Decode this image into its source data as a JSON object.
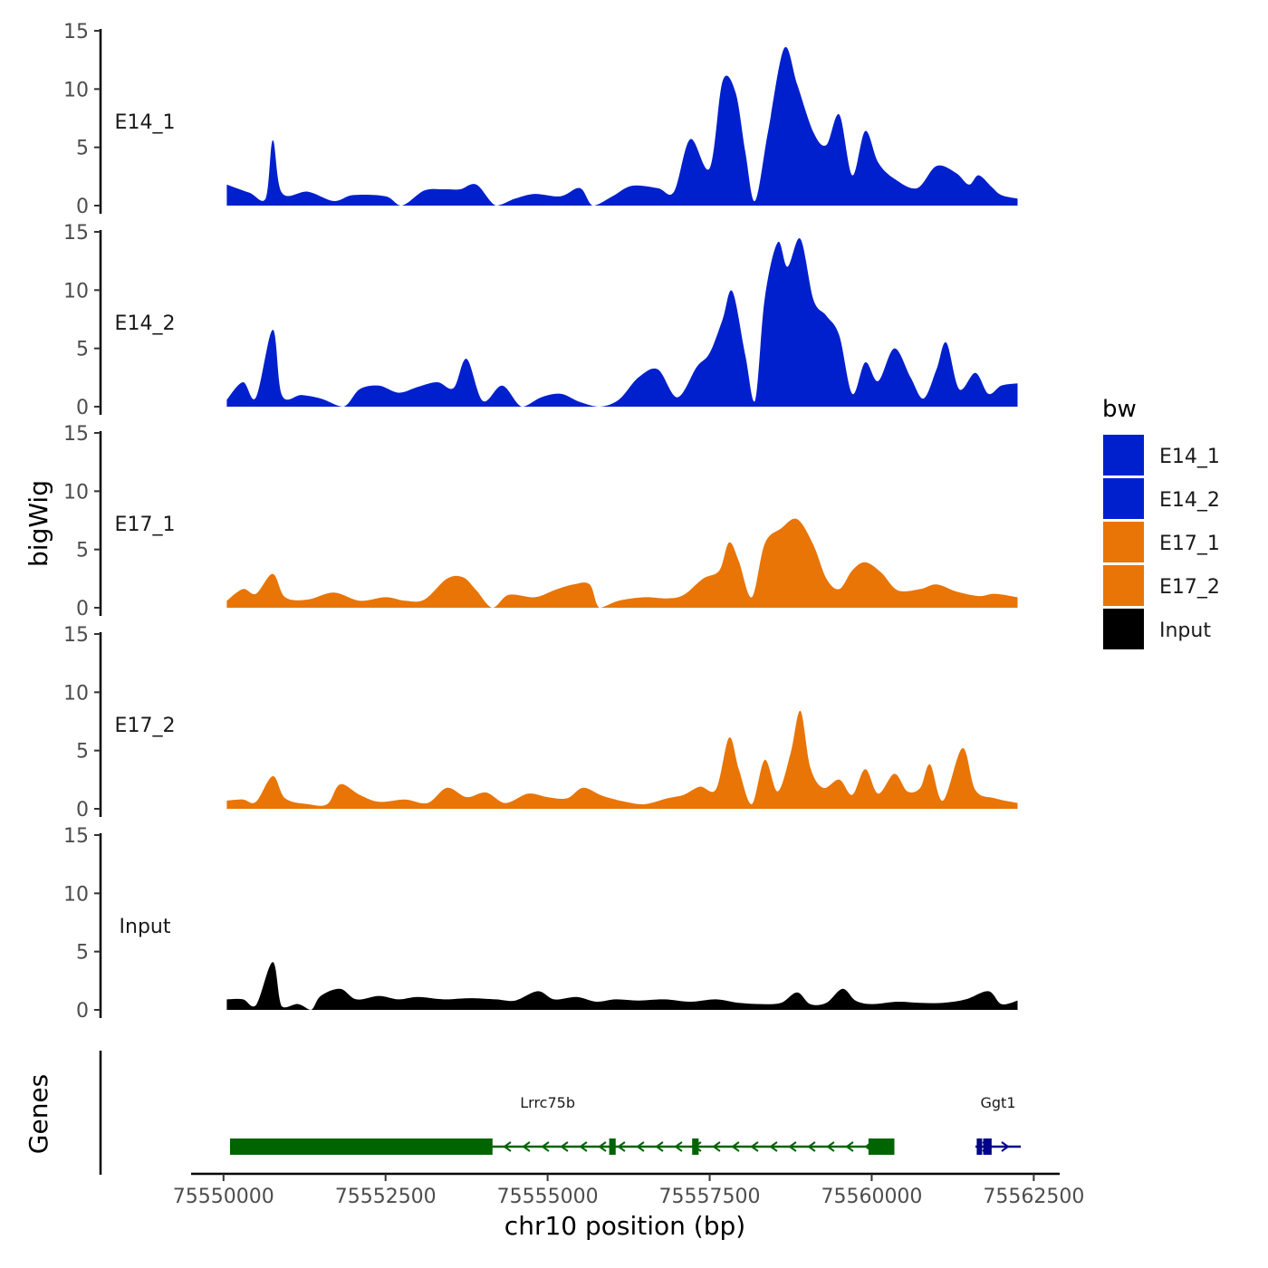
{
  "chart_data": {
    "type": "area",
    "ylabel": "bigWig",
    "genes_panel_label": "Genes",
    "xlabel": "chr10 position (bp)",
    "xlim": [
      75549500,
      75562900
    ],
    "ylim": [
      0,
      15
    ],
    "y_ticks": [
      0,
      5,
      10,
      15
    ],
    "x_ticks": [
      75550000,
      75552500,
      75555000,
      75557500,
      75560000,
      75562500
    ],
    "legend": {
      "title": "bw",
      "position": "right",
      "entries": [
        {
          "label": "E14_1",
          "color": "#0120CD"
        },
        {
          "label": "E14_2",
          "color": "#0120CD"
        },
        {
          "label": "E17_1",
          "color": "#E87506"
        },
        {
          "label": "E17_2",
          "color": "#E87506"
        },
        {
          "label": "Input",
          "color": "#000000"
        }
      ]
    },
    "series": [
      {
        "name": "E14_1",
        "color": "#0120CD",
        "points": [
          [
            75550050,
            1.8
          ],
          [
            75550400,
            1.1
          ],
          [
            75550650,
            0.6
          ],
          [
            75550760,
            5.6
          ],
          [
            75550900,
            1.1
          ],
          [
            75551300,
            1.2
          ],
          [
            75551700,
            0.4
          ],
          [
            75552000,
            0.9
          ],
          [
            75552500,
            0.8
          ],
          [
            75552750,
            0
          ],
          [
            75553100,
            1.3
          ],
          [
            75553400,
            1.4
          ],
          [
            75553650,
            1.4
          ],
          [
            75553900,
            1.8
          ],
          [
            75554200,
            0
          ],
          [
            75554500,
            0.6
          ],
          [
            75554800,
            1.0
          ],
          [
            75555200,
            0.8
          ],
          [
            75555500,
            1.5
          ],
          [
            75555700,
            0
          ],
          [
            75556000,
            0.8
          ],
          [
            75556300,
            1.7
          ],
          [
            75556700,
            1.5
          ],
          [
            75556950,
            1.2
          ],
          [
            75557200,
            5.7
          ],
          [
            75557500,
            3.2
          ],
          [
            75557700,
            10.7
          ],
          [
            75557900,
            9.7
          ],
          [
            75558050,
            4.6
          ],
          [
            75558200,
            0.4
          ],
          [
            75558400,
            6.3
          ],
          [
            75558650,
            13.5
          ],
          [
            75558850,
            10.4
          ],
          [
            75559100,
            6.3
          ],
          [
            75559300,
            5.2
          ],
          [
            75559500,
            7.8
          ],
          [
            75559700,
            2.6
          ],
          [
            75559900,
            6.4
          ],
          [
            75560100,
            3.7
          ],
          [
            75560350,
            2.3
          ],
          [
            75560700,
            1.5
          ],
          [
            75561000,
            3.4
          ],
          [
            75561300,
            2.8
          ],
          [
            75561500,
            1.8
          ],
          [
            75561650,
            2.6
          ],
          [
            75561850,
            1.6
          ],
          [
            75562000,
            0.9
          ],
          [
            75562250,
            0.6
          ]
        ]
      },
      {
        "name": "E14_2",
        "color": "#0120CD",
        "points": [
          [
            75550050,
            0.6
          ],
          [
            75550300,
            2.1
          ],
          [
            75550500,
            0.8
          ],
          [
            75550760,
            6.6
          ],
          [
            75550900,
            1.0
          ],
          [
            75551200,
            1.0
          ],
          [
            75551500,
            0.7
          ],
          [
            75551850,
            0
          ],
          [
            75552100,
            1.5
          ],
          [
            75552400,
            1.8
          ],
          [
            75552700,
            1.2
          ],
          [
            75553000,
            1.7
          ],
          [
            75553300,
            2.1
          ],
          [
            75553550,
            1.6
          ],
          [
            75553750,
            4.1
          ],
          [
            75554000,
            0.5
          ],
          [
            75554300,
            1.8
          ],
          [
            75554600,
            0
          ],
          [
            75554900,
            0.8
          ],
          [
            75555200,
            1.1
          ],
          [
            75555500,
            0.4
          ],
          [
            75555800,
            0
          ],
          [
            75556100,
            0.6
          ],
          [
            75556400,
            2.5
          ],
          [
            75556700,
            3.2
          ],
          [
            75557000,
            0.8
          ],
          [
            75557300,
            3.4
          ],
          [
            75557500,
            4.6
          ],
          [
            75557700,
            7.5
          ],
          [
            75557850,
            9.9
          ],
          [
            75558050,
            4.4
          ],
          [
            75558200,
            0.5
          ],
          [
            75558350,
            9.3
          ],
          [
            75558550,
            14.1
          ],
          [
            75558700,
            12.0
          ],
          [
            75558900,
            14.4
          ],
          [
            75559100,
            9.2
          ],
          [
            75559300,
            7.8
          ],
          [
            75559500,
            6.1
          ],
          [
            75559700,
            1.1
          ],
          [
            75559900,
            3.8
          ],
          [
            75560100,
            2.2
          ],
          [
            75560350,
            5.0
          ],
          [
            75560600,
            2.5
          ],
          [
            75560800,
            0.7
          ],
          [
            75561000,
            3.2
          ],
          [
            75561150,
            5.5
          ],
          [
            75561350,
            1.5
          ],
          [
            75561600,
            2.9
          ],
          [
            75561800,
            1.1
          ],
          [
            75562000,
            1.8
          ],
          [
            75562250,
            2.0
          ]
        ]
      },
      {
        "name": "E17_1",
        "color": "#E87506",
        "points": [
          [
            75550050,
            0.6
          ],
          [
            75550300,
            1.6
          ],
          [
            75550500,
            1.2
          ],
          [
            75550760,
            2.9
          ],
          [
            75550950,
            0.9
          ],
          [
            75551300,
            0.7
          ],
          [
            75551700,
            1.3
          ],
          [
            75552100,
            0.6
          ],
          [
            75552500,
            0.9
          ],
          [
            75552800,
            0.6
          ],
          [
            75553100,
            0.7
          ],
          [
            75553450,
            2.5
          ],
          [
            75553700,
            2.6
          ],
          [
            75553900,
            1.5
          ],
          [
            75554150,
            0
          ],
          [
            75554400,
            1.1
          ],
          [
            75554800,
            0.9
          ],
          [
            75555100,
            1.5
          ],
          [
            75555400,
            2.0
          ],
          [
            75555650,
            2.0
          ],
          [
            75555800,
            0
          ],
          [
            75556100,
            0.6
          ],
          [
            75556500,
            0.9
          ],
          [
            75556850,
            0.8
          ],
          [
            75557100,
            1.1
          ],
          [
            75557400,
            2.5
          ],
          [
            75557650,
            3.2
          ],
          [
            75557800,
            5.6
          ],
          [
            75557950,
            4.0
          ],
          [
            75558150,
            0.9
          ],
          [
            75558350,
            5.5
          ],
          [
            75558600,
            6.8
          ],
          [
            75558850,
            7.6
          ],
          [
            75559100,
            5.4
          ],
          [
            75559300,
            2.5
          ],
          [
            75559500,
            1.6
          ],
          [
            75559700,
            3.2
          ],
          [
            75559900,
            3.9
          ],
          [
            75560150,
            3.0
          ],
          [
            75560400,
            1.5
          ],
          [
            75560750,
            1.6
          ],
          [
            75561000,
            2.0
          ],
          [
            75561300,
            1.4
          ],
          [
            75561650,
            1.0
          ],
          [
            75561900,
            1.2
          ],
          [
            75562250,
            0.9
          ]
        ]
      },
      {
        "name": "E17_2",
        "color": "#E87506",
        "points": [
          [
            75550050,
            0.7
          ],
          [
            75550300,
            0.8
          ],
          [
            75550500,
            0.6
          ],
          [
            75550760,
            2.8
          ],
          [
            75550950,
            0.9
          ],
          [
            75551300,
            0.4
          ],
          [
            75551600,
            0.4
          ],
          [
            75551800,
            2.1
          ],
          [
            75552100,
            1.2
          ],
          [
            75552400,
            0.6
          ],
          [
            75552800,
            0.8
          ],
          [
            75553150,
            0.5
          ],
          [
            75553450,
            1.8
          ],
          [
            75553750,
            1.0
          ],
          [
            75554050,
            1.4
          ],
          [
            75554350,
            0.5
          ],
          [
            75554700,
            1.3
          ],
          [
            75555000,
            1.0
          ],
          [
            75555300,
            0.9
          ],
          [
            75555550,
            1.8
          ],
          [
            75555850,
            1.1
          ],
          [
            75556200,
            0.6
          ],
          [
            75556500,
            0.4
          ],
          [
            75556850,
            0.9
          ],
          [
            75557100,
            1.2
          ],
          [
            75557350,
            1.9
          ],
          [
            75557600,
            1.7
          ],
          [
            75557800,
            6.1
          ],
          [
            75557950,
            3.4
          ],
          [
            75558150,
            0.4
          ],
          [
            75558350,
            4.2
          ],
          [
            75558550,
            1.5
          ],
          [
            75558750,
            4.8
          ],
          [
            75558900,
            8.4
          ],
          [
            75559050,
            3.6
          ],
          [
            75559250,
            1.8
          ],
          [
            75559500,
            2.5
          ],
          [
            75559700,
            1.2
          ],
          [
            75559900,
            3.4
          ],
          [
            75560100,
            1.3
          ],
          [
            75560350,
            3.0
          ],
          [
            75560550,
            1.5
          ],
          [
            75560750,
            1.8
          ],
          [
            75560900,
            3.8
          ],
          [
            75561100,
            0.7
          ],
          [
            75561400,
            5.2
          ],
          [
            75561600,
            1.6
          ],
          [
            75561900,
            0.9
          ],
          [
            75562250,
            0.5
          ]
        ]
      },
      {
        "name": "Input",
        "color": "#000000",
        "points": [
          [
            75550050,
            0.9
          ],
          [
            75550300,
            0.9
          ],
          [
            75550500,
            0.4
          ],
          [
            75550760,
            4.1
          ],
          [
            75550900,
            0.3
          ],
          [
            75551150,
            0.5
          ],
          [
            75551350,
            0
          ],
          [
            75551500,
            1.2
          ],
          [
            75551800,
            1.8
          ],
          [
            75552050,
            0.9
          ],
          [
            75552400,
            1.2
          ],
          [
            75552700,
            0.9
          ],
          [
            75553000,
            1.1
          ],
          [
            75553400,
            0.9
          ],
          [
            75553800,
            1.0
          ],
          [
            75554200,
            0.9
          ],
          [
            75554500,
            0.8
          ],
          [
            75554850,
            1.6
          ],
          [
            75555100,
            0.9
          ],
          [
            75555450,
            1.1
          ],
          [
            75555750,
            0.7
          ],
          [
            75556050,
            0.9
          ],
          [
            75556400,
            0.8
          ],
          [
            75556800,
            0.9
          ],
          [
            75557200,
            0.7
          ],
          [
            75557600,
            0.9
          ],
          [
            75557950,
            0.6
          ],
          [
            75558300,
            0.5
          ],
          [
            75558600,
            0.6
          ],
          [
            75558850,
            1.5
          ],
          [
            75559050,
            0.5
          ],
          [
            75559300,
            0.6
          ],
          [
            75559550,
            1.8
          ],
          [
            75559750,
            0.8
          ],
          [
            75560000,
            0.5
          ],
          [
            75560400,
            0.7
          ],
          [
            75560750,
            0.6
          ],
          [
            75561100,
            0.6
          ],
          [
            75561450,
            0.9
          ],
          [
            75561800,
            1.6
          ],
          [
            75562000,
            0.5
          ],
          [
            75562250,
            0.8
          ]
        ]
      }
    ],
    "genes": [
      {
        "name": "Lrrc75b",
        "color": "#006400",
        "strand": "-",
        "start": 75550100,
        "end": 75560350,
        "label_pos": 75555000,
        "exons": [
          [
            75550100,
            75554150
          ],
          [
            75555950,
            75556050
          ],
          [
            75557230,
            75557330
          ],
          [
            75559950,
            75560350
          ]
        ]
      },
      {
        "name": "Ggt1",
        "color": "#00008B",
        "strand": "+",
        "start": 75561600,
        "end": 75562300,
        "label_pos": 75561950,
        "exons": [
          [
            75561620,
            75561650
          ],
          [
            75561720,
            75561850
          ]
        ]
      }
    ]
  }
}
